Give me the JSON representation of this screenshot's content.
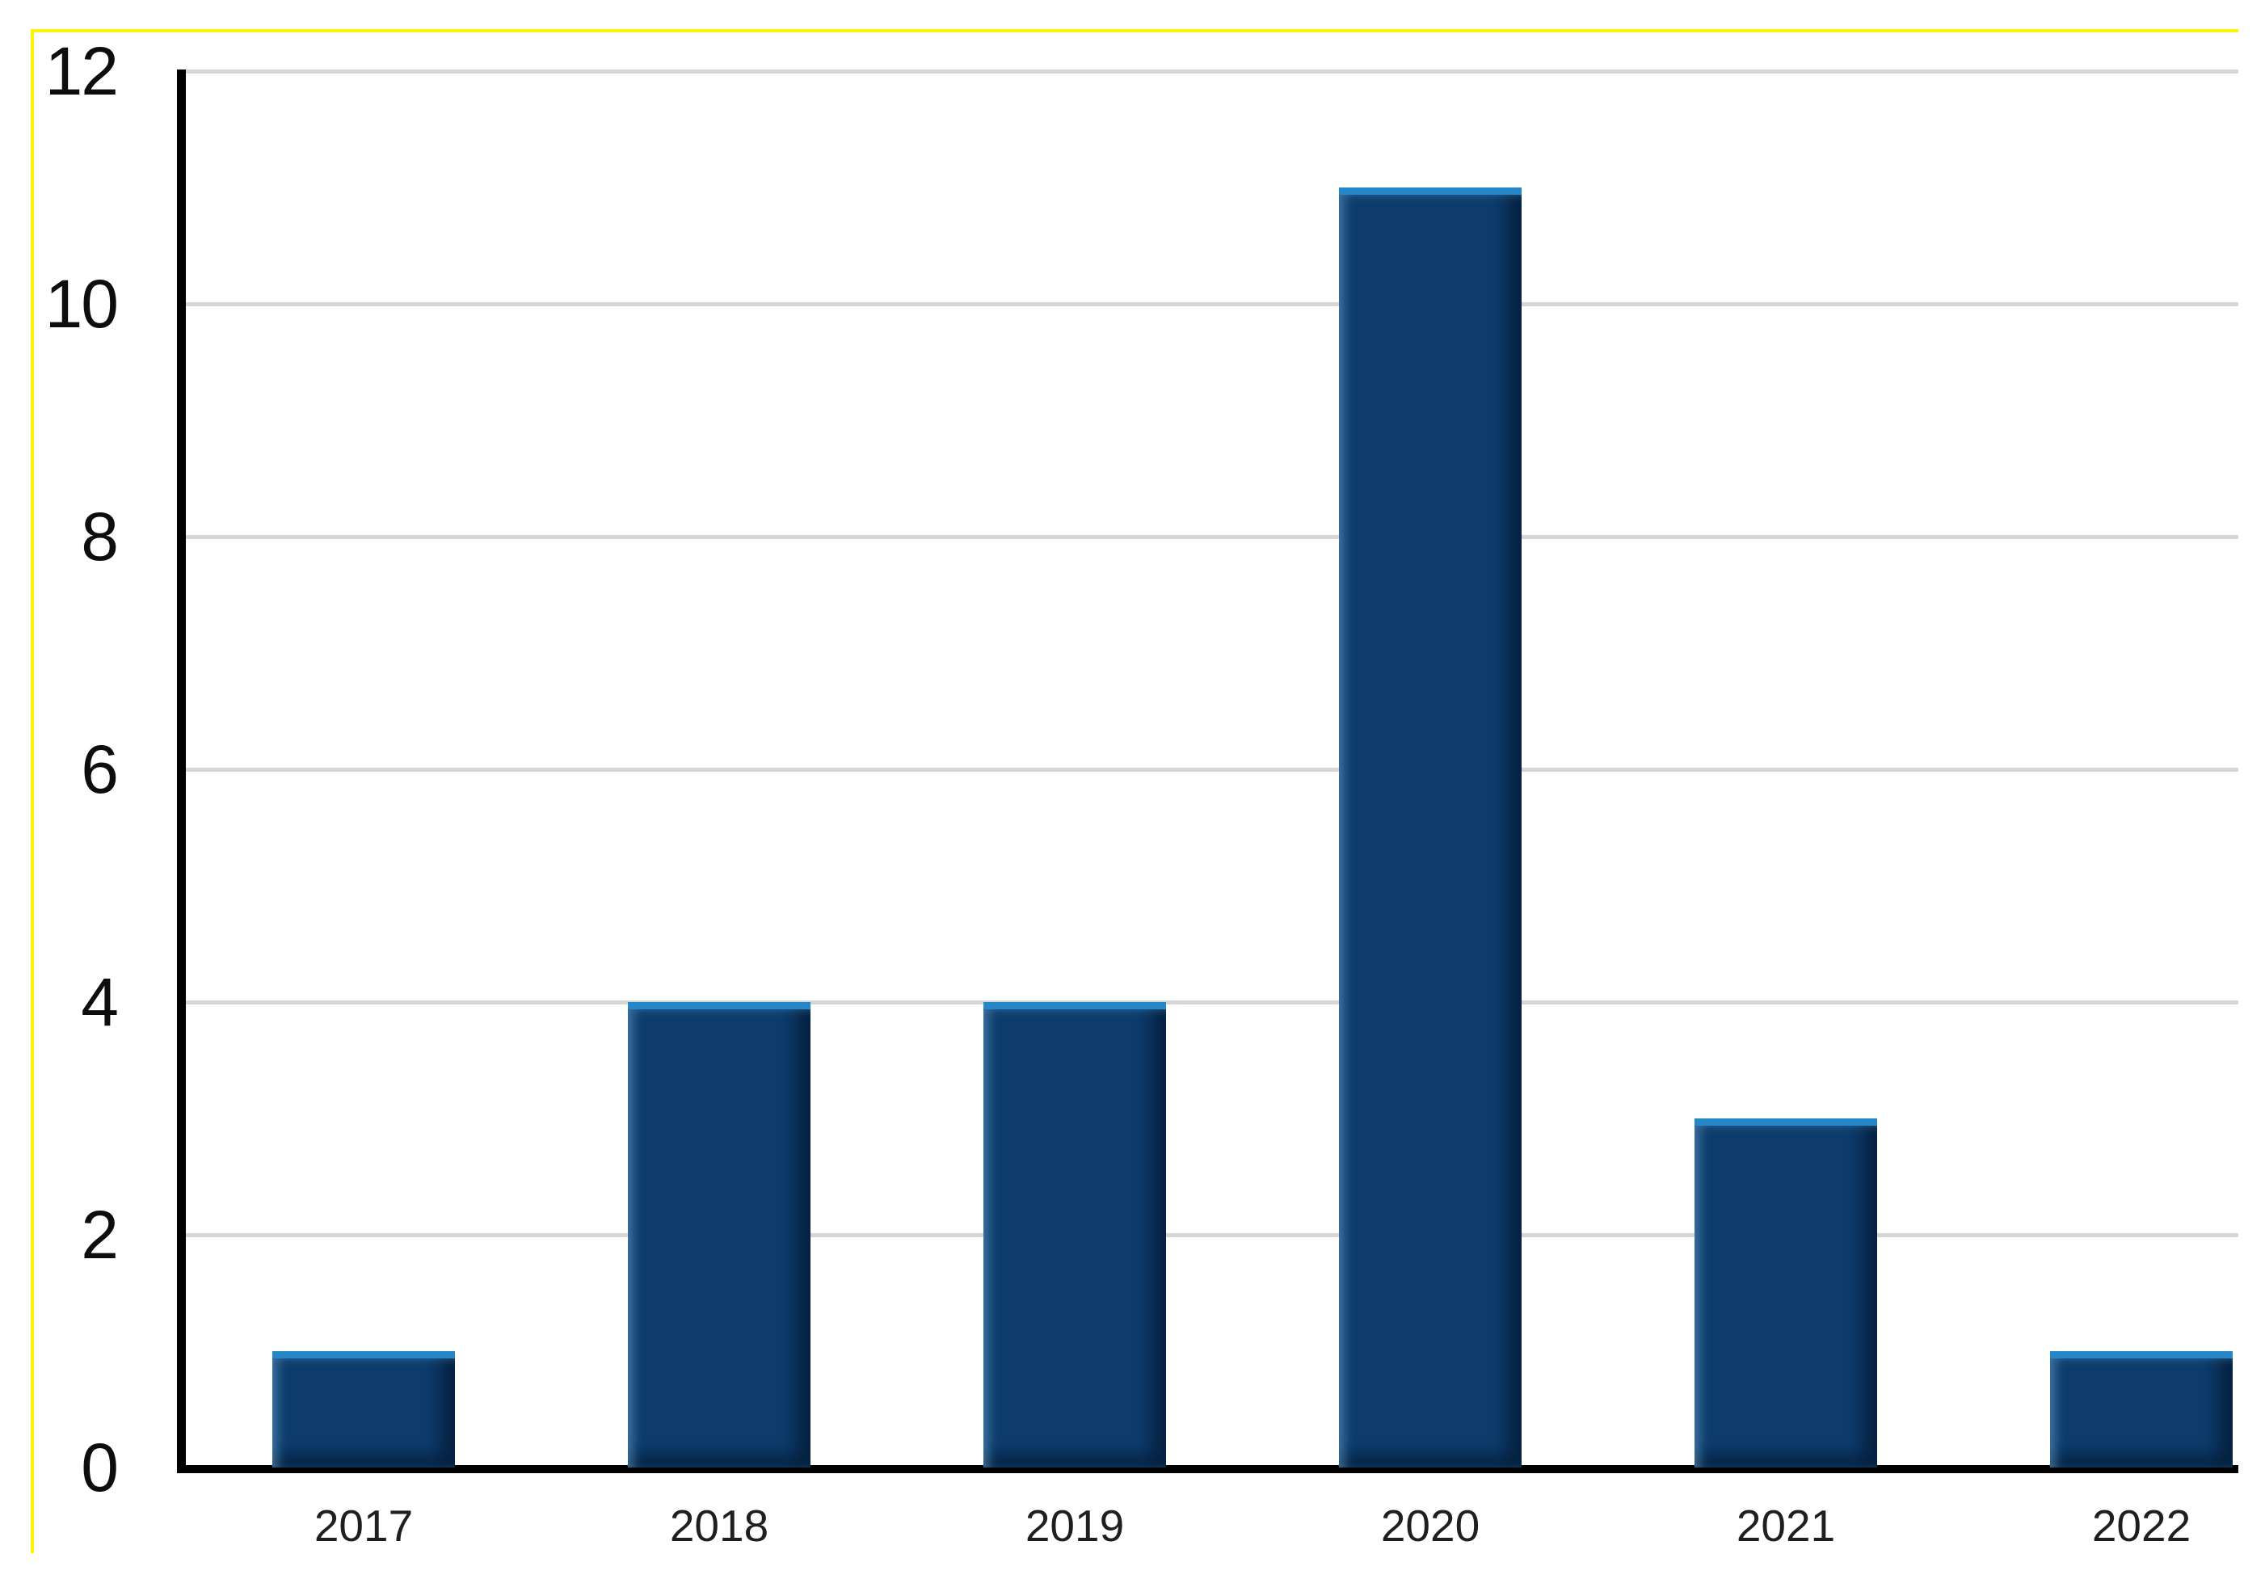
{
  "chart_data": {
    "type": "bar",
    "title": "",
    "xlabel": "",
    "ylabel": "",
    "categories": [
      "2017",
      "2018",
      "2019",
      "2020",
      "2021",
      "2022"
    ],
    "values": [
      1,
      4,
      4,
      11,
      3,
      1
    ],
    "ylim": [
      0,
      12
    ],
    "yticks": [
      0,
      2,
      4,
      6,
      8,
      10,
      12
    ],
    "grid": true,
    "legend_position": "none",
    "colors": {
      "bar_fill": "#0d3c6c",
      "bar_top_highlight": "#2487c8",
      "bar_shadow": "#09294a",
      "gridline": "#d6d6d6",
      "axis": "#000000",
      "tick_label": "#0d0d0d",
      "category_label": "#1f1f1f",
      "chart_border": "#fdf303",
      "background": "#ffffff"
    }
  }
}
